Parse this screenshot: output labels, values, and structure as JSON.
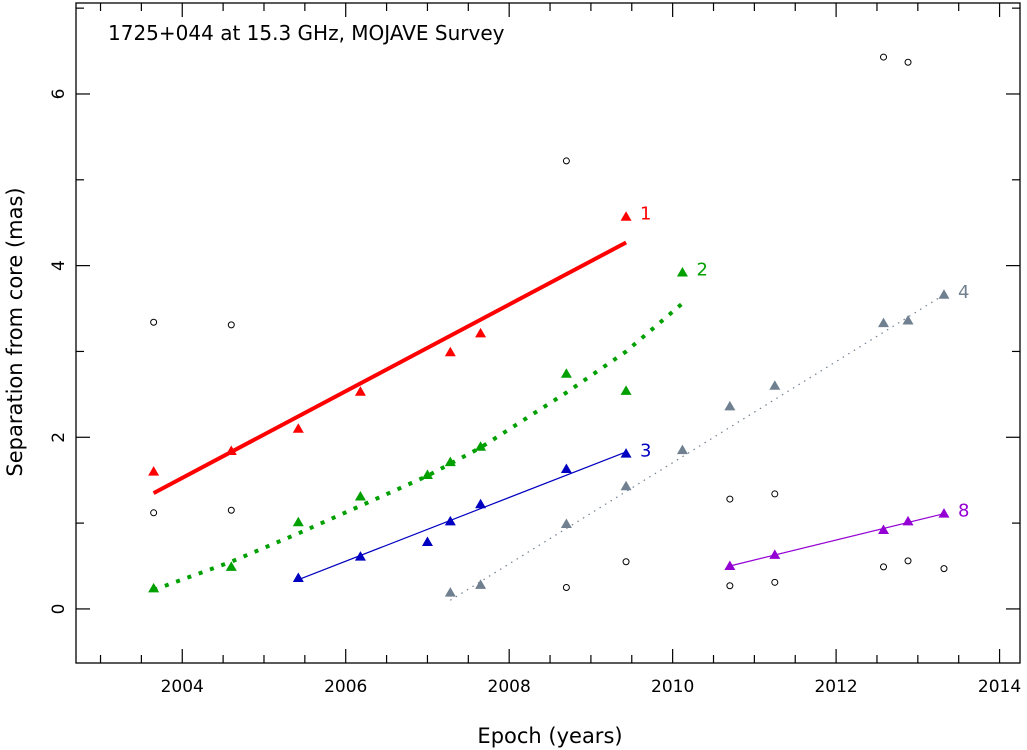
{
  "chart_data": {
    "type": "scatter",
    "title": "1725+044 at 15.3 GHz, MOJAVE Survey",
    "xlabel": "Epoch (years)",
    "ylabel": "Separation from core (mas)",
    "xlim": [
      2002.7,
      2014.25
    ],
    "ylim": [
      -0.63,
      7.06
    ],
    "xticks": [
      2004,
      2006,
      2008,
      2010,
      2012,
      2014
    ],
    "yticks": [
      0,
      2,
      4,
      6
    ],
    "grid": false,
    "series": [
      {
        "name": "1",
        "color": "#ff0000",
        "points": [
          [
            2003.65,
            1.6
          ],
          [
            2004.6,
            1.84
          ],
          [
            2005.42,
            2.1
          ],
          [
            2006.18,
            2.53
          ],
          [
            2007.28,
            2.99
          ],
          [
            2007.65,
            3.21
          ],
          [
            2009.43,
            4.57
          ]
        ],
        "fit": {
          "style": "thick",
          "x": [
            2003.65,
            2009.43
          ],
          "y": [
            1.35,
            4.27
          ]
        }
      },
      {
        "name": "2",
        "color": "#00a000",
        "points": [
          [
            2003.65,
            0.24
          ],
          [
            2004.6,
            0.49
          ],
          [
            2005.42,
            1.01
          ],
          [
            2006.18,
            1.31
          ],
          [
            2007.0,
            1.56
          ],
          [
            2007.28,
            1.71
          ],
          [
            2007.65,
            1.89
          ],
          [
            2008.7,
            2.74
          ],
          [
            2009.43,
            2.54
          ],
          [
            2010.12,
            3.92
          ]
        ],
        "fit": {
          "style": "dotted-thick",
          "x": [
            2003.65,
            2004.6,
            2005.42,
            2006.18,
            2007.0,
            2007.65,
            2008.7,
            2009.43,
            2010.12
          ],
          "y": [
            0.22,
            0.55,
            0.88,
            1.2,
            1.55,
            1.88,
            2.52,
            3.0,
            3.56
          ]
        }
      },
      {
        "name": "3",
        "color": "#0000c0",
        "points": [
          [
            2005.42,
            0.36
          ],
          [
            2006.18,
            0.61
          ],
          [
            2007.0,
            0.78
          ],
          [
            2007.28,
            1.02
          ],
          [
            2007.65,
            1.22
          ],
          [
            2008.7,
            1.63
          ],
          [
            2009.43,
            1.81
          ]
        ],
        "fit": {
          "style": "thin",
          "x": [
            2005.42,
            2009.43
          ],
          "y": [
            0.34,
            1.83
          ]
        }
      },
      {
        "name": "4",
        "color": "#708090",
        "points": [
          [
            2007.28,
            0.19
          ],
          [
            2007.65,
            0.28
          ],
          [
            2008.7,
            0.99
          ],
          [
            2009.43,
            1.43
          ],
          [
            2010.12,
            1.85
          ],
          [
            2010.7,
            2.36
          ],
          [
            2011.25,
            2.6
          ],
          [
            2012.58,
            3.33
          ],
          [
            2012.88,
            3.36
          ],
          [
            2013.32,
            3.66
          ]
        ],
        "fit": {
          "style": "dotted-thin",
          "x": [
            2007.28,
            2013.32
          ],
          "y": [
            0.1,
            3.66
          ]
        }
      },
      {
        "name": "8",
        "color": "#9400d3",
        "points": [
          [
            2010.7,
            0.5
          ],
          [
            2011.25,
            0.63
          ],
          [
            2012.58,
            0.92
          ],
          [
            2012.88,
            1.02
          ],
          [
            2013.32,
            1.11
          ]
        ],
        "fit": {
          "style": "thin",
          "x": [
            2010.7,
            2013.32
          ],
          "y": [
            0.5,
            1.11
          ]
        }
      }
    ],
    "unassociated": [
      [
        2003.65,
        3.34
      ],
      [
        2003.65,
        1.12
      ],
      [
        2004.6,
        3.31
      ],
      [
        2004.6,
        1.15
      ],
      [
        2008.7,
        5.22
      ],
      [
        2008.7,
        0.25
      ],
      [
        2009.43,
        0.55
      ],
      [
        2010.7,
        1.28
      ],
      [
        2010.7,
        0.27
      ],
      [
        2011.25,
        1.34
      ],
      [
        2011.25,
        0.31
      ],
      [
        2012.58,
        6.43
      ],
      [
        2012.58,
        0.49
      ],
      [
        2012.88,
        6.37
      ],
      [
        2012.88,
        0.56
      ],
      [
        2013.32,
        0.47
      ]
    ]
  }
}
